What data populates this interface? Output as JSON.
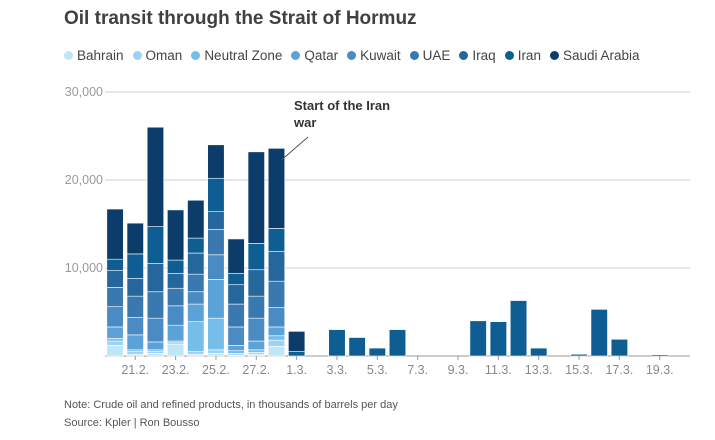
{
  "title": "Oil transit through the Strait of Hormuz",
  "note": "Note: Crude oil and refined products, in thousands of barrels per day",
  "source": "Source: Kpler | Ron Bousso",
  "chart_data": {
    "type": "bar",
    "stacked": true,
    "grid": true,
    "ylim": [
      0,
      30000
    ],
    "y_ticks": [
      "30,000",
      "20,000",
      "10,000"
    ],
    "x_ticks": [
      "21.2.",
      "23.2.",
      "25.2.",
      "27.2.",
      "1.3.",
      "3.3.",
      "5.3.",
      "7.3.",
      "9.3.",
      "11.3.",
      "13.3.",
      "15.3.",
      "17.3.",
      "19.3."
    ],
    "annotation": {
      "text_line1": "Start of the Iran",
      "text_line2": "war",
      "category_index": 8
    },
    "series": [
      {
        "name": "Bahrain",
        "color": "#bfe6f6"
      },
      {
        "name": "Oman",
        "color": "#9bd3f2"
      },
      {
        "name": "Neutral Zone",
        "color": "#77bdea"
      },
      {
        "name": "Qatar",
        "color": "#5aa2d8"
      },
      {
        "name": "Kuwait",
        "color": "#4a8bc4"
      },
      {
        "name": "UAE",
        "color": "#3a78b0"
      },
      {
        "name": "Iraq",
        "color": "#25669c"
      },
      {
        "name": "Iran",
        "color": "#0e5e94"
      },
      {
        "name": "Saudi Arabia",
        "color": "#0b3c6a"
      }
    ],
    "stacks": [
      [
        1200,
        500,
        300,
        1300,
        2300,
        2200,
        1900,
        1300,
        5700
      ],
      [
        200,
        300,
        200,
        1700,
        2000,
        2400,
        2000,
        2800,
        3500
      ],
      [
        300,
        200,
        200,
        900,
        2700,
        3000,
        3200,
        4200,
        11300
      ],
      [
        1300,
        200,
        200,
        1800,
        2200,
        2000,
        1700,
        1500,
        5700
      ],
      [
        200,
        300,
        3400,
        2000,
        1400,
        2000,
        2400,
        1700,
        4300
      ],
      [
        300,
        400,
        3600,
        4400,
        2800,
        2900,
        2000,
        3800,
        3800
      ],
      [
        100,
        200,
        300,
        600,
        2100,
        2600,
        2200,
        1300,
        3900
      ],
      [
        200,
        200,
        300,
        1000,
        2600,
        2500,
        3000,
        3000,
        10400
      ],
      [
        1100,
        700,
        500,
        1000,
        2200,
        3000,
        3400,
        2600,
        9100
      ],
      [
        0,
        0,
        0,
        0,
        0,
        0,
        0,
        500,
        2300
      ],
      [
        0,
        0,
        0,
        0,
        0,
        0,
        0,
        0,
        0
      ],
      [
        0,
        0,
        0,
        0,
        0,
        0,
        0,
        3000,
        0
      ],
      [
        0,
        0,
        0,
        0,
        0,
        0,
        0,
        2100,
        0
      ],
      [
        0,
        0,
        0,
        0,
        0,
        0,
        0,
        900,
        0
      ],
      [
        0,
        0,
        0,
        0,
        0,
        0,
        0,
        3000,
        0
      ],
      [
        0,
        0,
        0,
        0,
        0,
        0,
        0,
        0,
        0
      ],
      [
        0,
        0,
        0,
        0,
        0,
        0,
        0,
        0,
        0
      ],
      [
        0,
        0,
        0,
        0,
        0,
        0,
        0,
        0,
        0
      ],
      [
        0,
        0,
        0,
        0,
        0,
        0,
        0,
        4000,
        0
      ],
      [
        0,
        0,
        0,
        0,
        0,
        0,
        0,
        3900,
        0
      ],
      [
        0,
        0,
        0,
        0,
        0,
        0,
        0,
        6300,
        0
      ],
      [
        0,
        0,
        0,
        0,
        0,
        0,
        0,
        900,
        0
      ],
      [
        0,
        0,
        0,
        0,
        0,
        0,
        0,
        0,
        0
      ],
      [
        0,
        0,
        0,
        0,
        0,
        0,
        0,
        200,
        0
      ],
      [
        0,
        0,
        0,
        0,
        0,
        0,
        0,
        5300,
        0
      ],
      [
        0,
        0,
        0,
        0,
        0,
        0,
        0,
        1900,
        0
      ],
      [
        0,
        0,
        0,
        0,
        0,
        0,
        0,
        0,
        0
      ],
      [
        0,
        0,
        0,
        0,
        0,
        0,
        0,
        150,
        0
      ],
      [
        0,
        0,
        0,
        0,
        0,
        0,
        0,
        0,
        0
      ]
    ]
  }
}
